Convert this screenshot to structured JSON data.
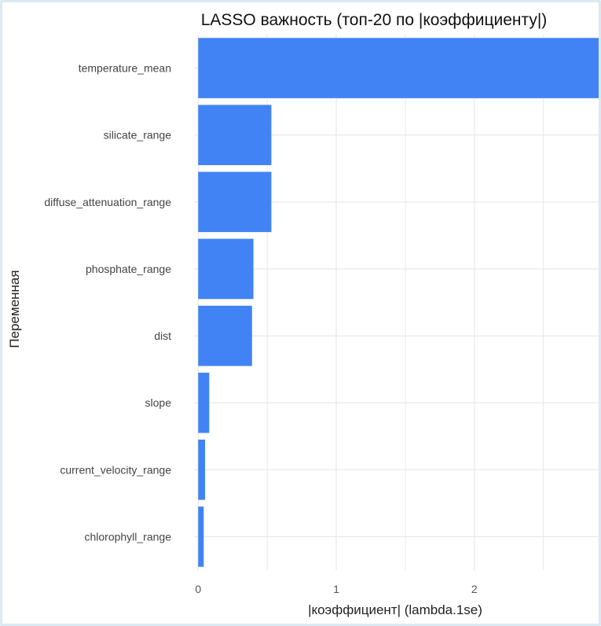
{
  "chart_data": {
    "type": "bar",
    "orientation": "horizontal",
    "title": "LASSO важность (топ-20 по |коэффициенту|)",
    "xlabel": "|коэффициент| (lambda.1se)",
    "ylabel": "Переменная",
    "categories": [
      "temperature_mean",
      "silicate_range",
      "diffuse_attenuation_range",
      "phosphate_range",
      "dist",
      "slope",
      "current_velocity_range",
      "chlorophyll_range"
    ],
    "values": [
      2.9,
      0.53,
      0.53,
      0.4,
      0.39,
      0.08,
      0.05,
      0.04
    ],
    "xlim": [
      -0.03,
      2.9
    ],
    "xticks": [
      0,
      1,
      2
    ],
    "xtick_labels": [
      "0",
      "1",
      "2"
    ],
    "grid": true,
    "bar_color": "#4183f4",
    "grid_color": "#e8e8e8"
  }
}
